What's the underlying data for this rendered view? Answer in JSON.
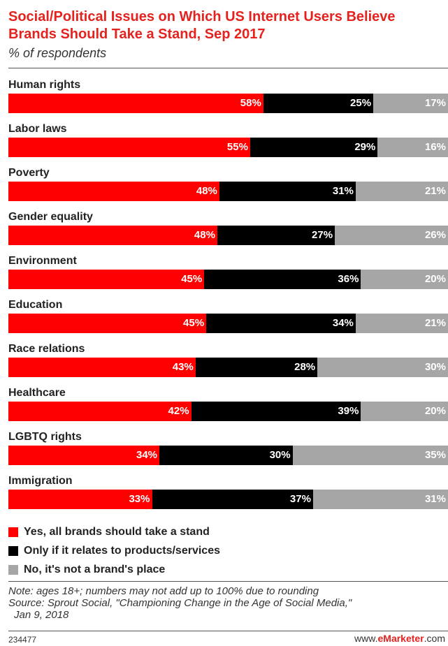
{
  "header": {
    "title": "Social/Political Issues on Which US Internet Users Believe Brands Should Take a Stand, Sep 2017",
    "subtitle": "% of respondents"
  },
  "colors": {
    "yes": "#ff0000",
    "only_if": "#000000",
    "no": "#a6a6a6",
    "title": "#e4231f"
  },
  "chart_data": {
    "type": "bar",
    "orientation": "horizontal",
    "stacked": true,
    "unit": "%",
    "categories": [
      "Human rights",
      "Labor laws",
      "Poverty",
      "Gender equality",
      "Environment",
      "Education",
      "Race relations",
      "Healthcare",
      "LGBTQ rights",
      "Immigration"
    ],
    "series": [
      {
        "name": "Yes, all brands should take a stand",
        "values": [
          58,
          55,
          48,
          48,
          45,
          45,
          43,
          42,
          34,
          33
        ]
      },
      {
        "name": "Only if it relates to products/services",
        "values": [
          25,
          29,
          31,
          27,
          36,
          34,
          28,
          39,
          30,
          37
        ]
      },
      {
        "name": "No, it's not a brand's place",
        "values": [
          17,
          16,
          21,
          26,
          20,
          21,
          30,
          20,
          35,
          31
        ]
      }
    ],
    "legend_position": "bottom",
    "grid": false
  },
  "footer": {
    "note_lines": [
      "Note: ages 18+; numbers may not add up to 100% due to rounding",
      "Source: Sprout Social, \"Championing Change in the Age of Social Media,\"",
      "Jan 9, 2018"
    ],
    "chart_id": "234477",
    "brand_prefix": "www.",
    "brand_name": "eMarketer",
    "brand_suffix": ".com"
  }
}
